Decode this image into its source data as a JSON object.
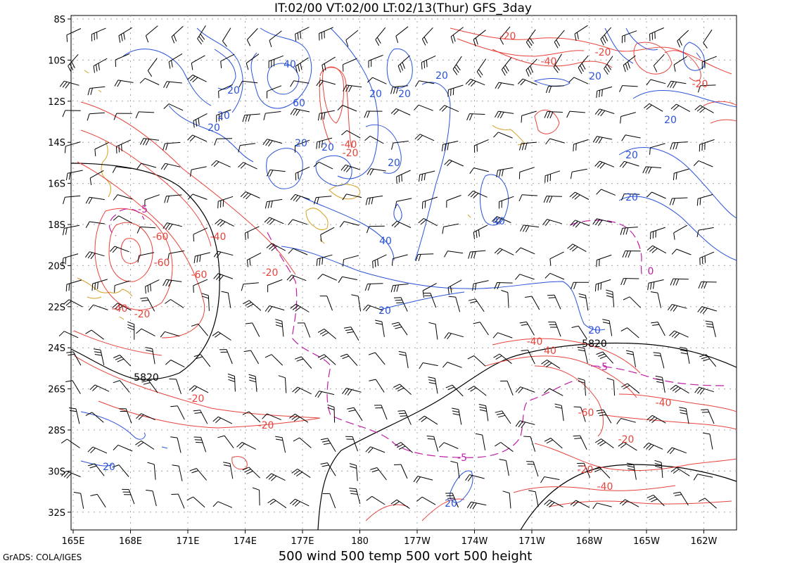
{
  "header": {
    "title": "IT:02/00 VT:02/00 LT:02/13(Thur) GFS_3day"
  },
  "footer": {
    "caption": "500 wind 500 temp 500 vort 500 height",
    "credit": "GrADS: COLA/IGES"
  },
  "axes": {
    "lat_labels": [
      "8S",
      "10S",
      "12S",
      "14S",
      "16S",
      "18S",
      "20S",
      "22S",
      "24S",
      "26S",
      "28S",
      "30S",
      "32S"
    ],
    "lon_labels": [
      "165E",
      "168E",
      "171E",
      "174E",
      "177E",
      "180",
      "177W",
      "174W",
      "171W",
      "168W",
      "165W",
      "162W"
    ]
  },
  "colors": {
    "height": "#000000",
    "temp": "#e8433c",
    "wind_speed": "#2a52d8",
    "vorticity": "#c01fa6",
    "terrain": "#d4a020",
    "barb": "#000000",
    "grid": "#a8a8a8"
  },
  "contour_labels": {
    "height": [
      "5820",
      "5820"
    ],
    "temp": [
      "-20",
      "-40",
      "-20",
      "-40",
      "-20",
      "-60",
      "-60",
      "-60",
      "-40",
      "-40",
      "-20",
      "-20",
      "-20",
      "-20",
      "-40",
      "-60",
      "-20",
      "-40",
      "-20",
      "-20",
      "-40"
    ],
    "wind": [
      "40",
      "60",
      "20",
      "20",
      "20",
      "20",
      "20",
      "20",
      "20",
      "20",
      "20",
      "20",
      "40",
      "40",
      "20",
      "20",
      "20",
      "20"
    ],
    "vort": [
      "-5",
      "-5",
      "0",
      "-5"
    ]
  }
}
